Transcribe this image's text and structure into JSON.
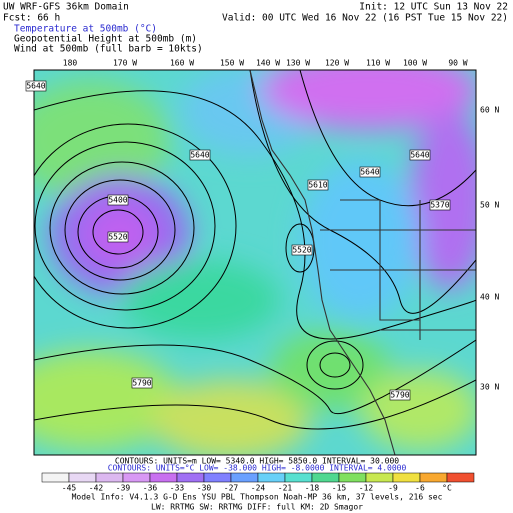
{
  "header": {
    "model": "UW WRF-GFS 36km Domain",
    "init": "Init: 12 UTC Sun 13 Nov 22",
    "forecast": "Fcst:   66 h",
    "valid": "Valid: 00 UTC Wed 16 Nov 22 (16 PST Tue 15 Nov 22)",
    "fields": [
      "Temperature at 500mb (°C)",
      "Geopotential Height at 500mb (m)",
      "Wind at 500mb (full barb = 10kts)"
    ]
  },
  "map": {
    "longitudes": [
      "180",
      "170 W",
      "160 W",
      "150 W",
      "140 W",
      "130 W",
      "120 W",
      "110 W",
      "100 W",
      "90 W"
    ],
    "latitudes": [
      "60 N",
      "50 N",
      "40 N",
      "30 N"
    ],
    "contour_labels": [
      "5640",
      "5400",
      "5520",
      "5640",
      "5610",
      "5640",
      "5370",
      "5520",
      "5790",
      "5790",
      "5640"
    ]
  },
  "footer": {
    "height_contours": "CONTOURS: UNITS=m  LOW= 5340.0     HIGH= 5850.0     INTERVAL= 30.000",
    "temp_contours": "CONTOURS: UNITS=°C LOW= -38.000    HIGH= -8.0000    INTERVAL= 4.0000",
    "colorbar_labels": [
      "-45",
      "-42",
      "-39",
      "-36",
      "-33",
      "-30",
      "-27",
      "-24",
      "-21",
      "-18",
      "-15",
      "-12",
      "-9",
      "-6",
      "°C"
    ],
    "model_info": "Model Info: V4.1.3   G-D Ens YSU PBL  Thompson    Noah-MP   36 km,  37 levels,  216 sec",
    "physics": "LW: RRTMG  SW: RRTMG    DIFF: full    KM: 2D Smagor"
  }
}
